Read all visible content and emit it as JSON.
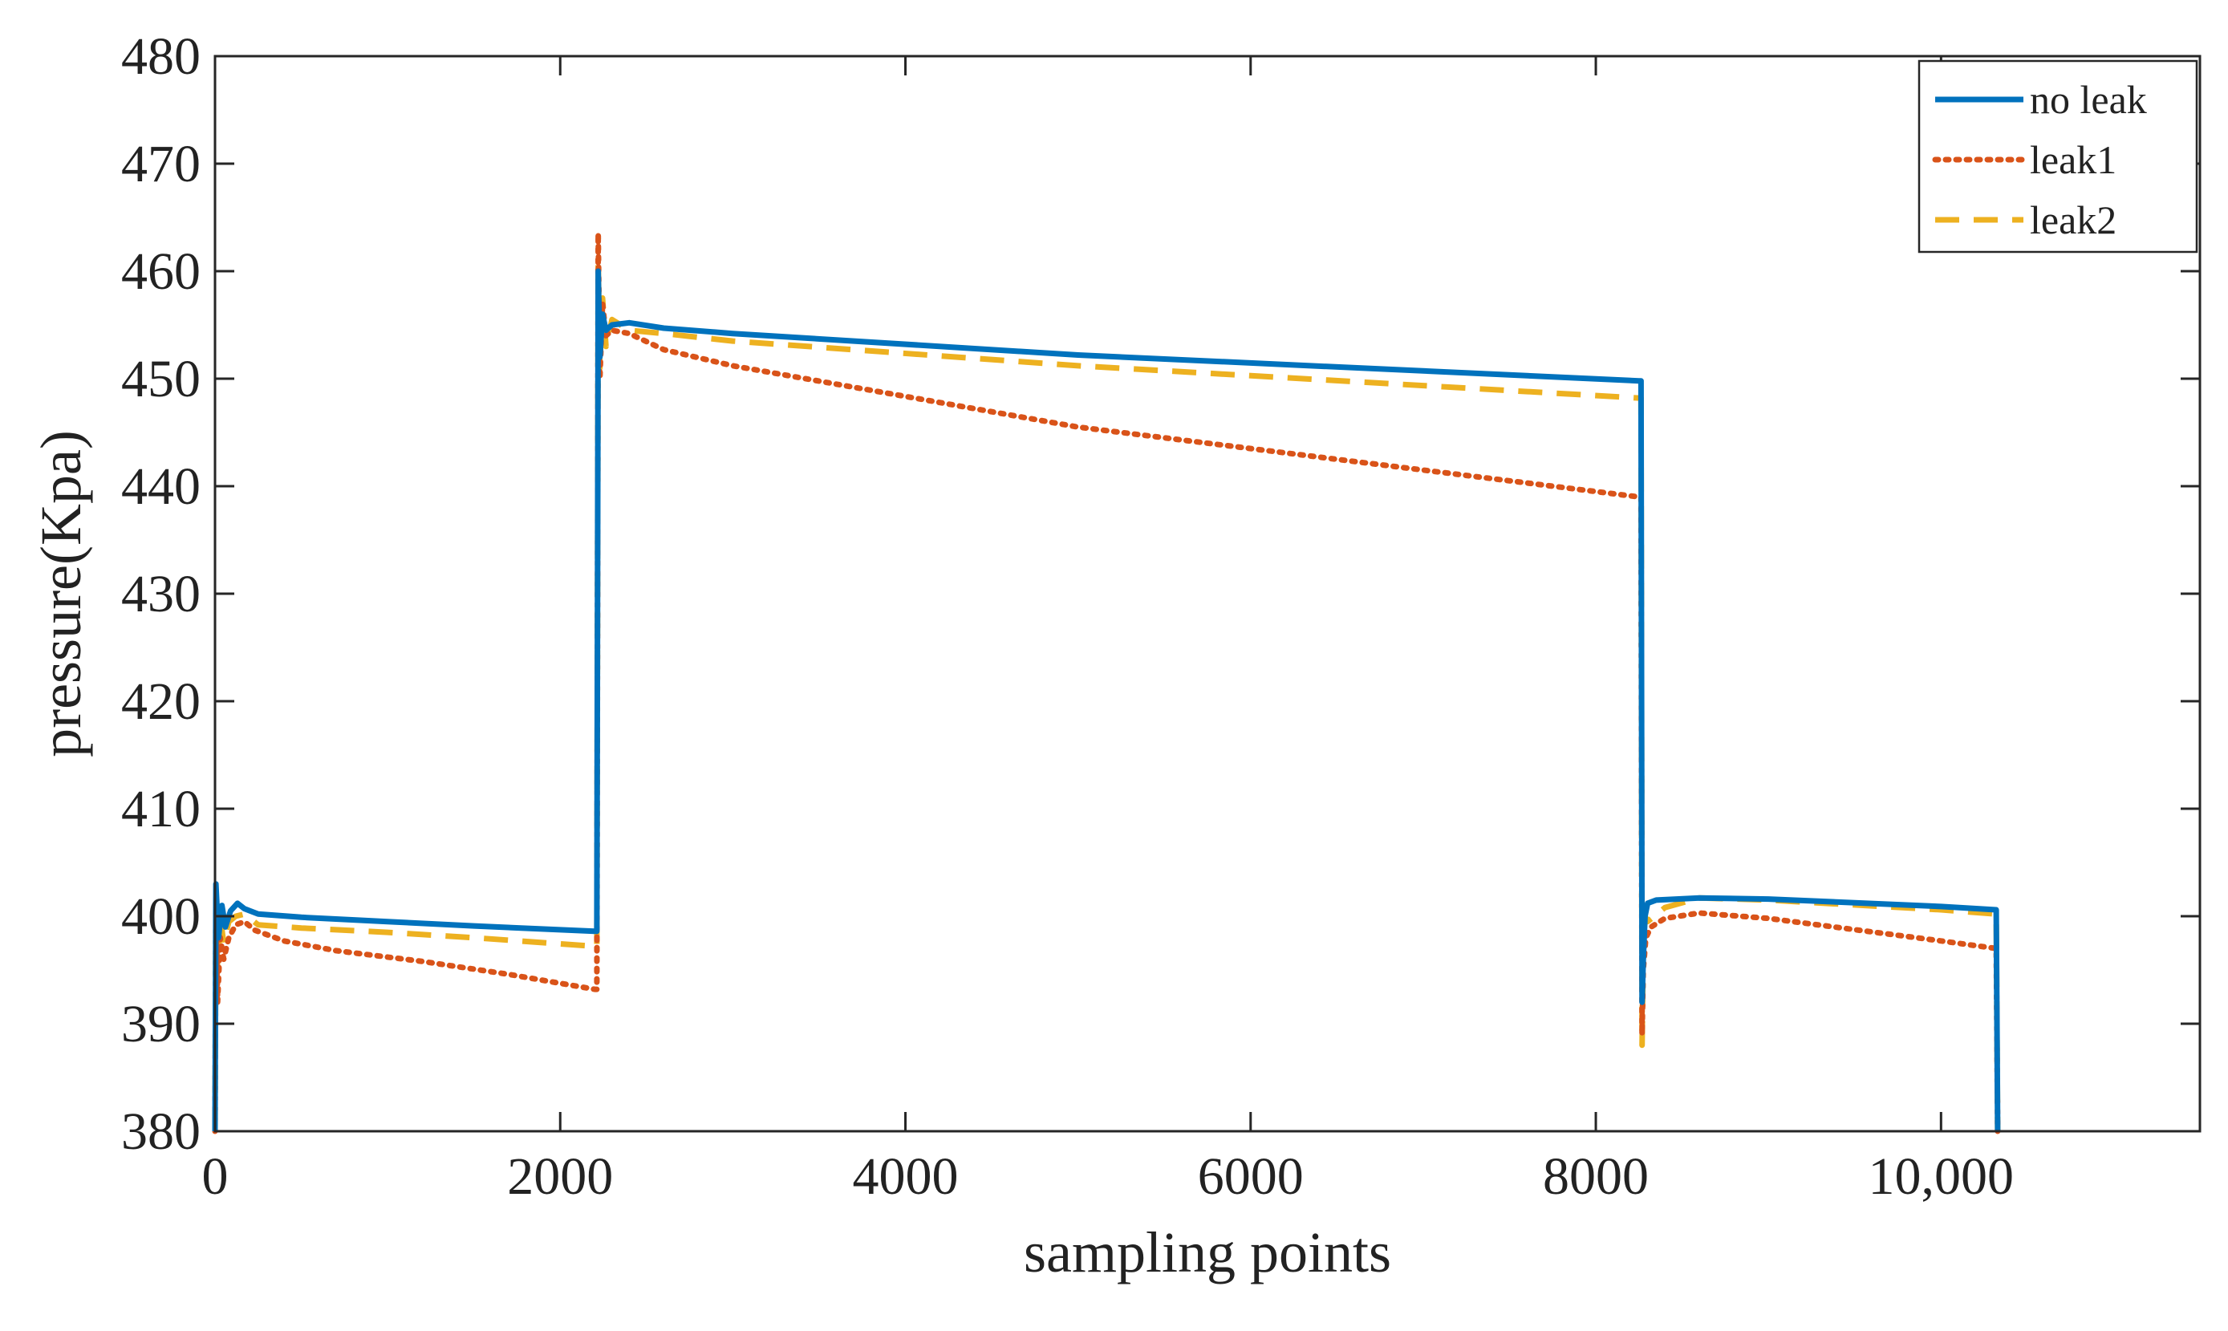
{
  "chart_data": {
    "type": "line",
    "title": "",
    "xlabel": "sampling points",
    "ylabel": "pressure(Kpa)",
    "xlim": [
      0,
      11500
    ],
    "ylim": [
      380,
      480
    ],
    "xticks": [
      0,
      2000,
      4000,
      6000,
      8000,
      10000
    ],
    "xtick_labels": [
      "0",
      "2000",
      "4000",
      "6000",
      "8000",
      "10,000"
    ],
    "yticks": [
      380,
      390,
      400,
      410,
      420,
      430,
      440,
      450,
      460,
      470,
      480
    ],
    "ytick_labels": [
      "380",
      "390",
      "400",
      "410",
      "420",
      "430",
      "440",
      "450",
      "460",
      "470",
      "480"
    ],
    "legend_position": "top-right",
    "series": [
      {
        "name": "no leak",
        "color": "#0072BD",
        "style": "solid",
        "points": [
          [
            0,
            380
          ],
          [
            5,
            403
          ],
          [
            20,
            398
          ],
          [
            40,
            401
          ],
          [
            60,
            399
          ],
          [
            90,
            400.5
          ],
          [
            130,
            401.2
          ],
          [
            170,
            400.7
          ],
          [
            250,
            400.2
          ],
          [
            500,
            399.9
          ],
          [
            1000,
            399.5
          ],
          [
            1500,
            399.1
          ],
          [
            2200,
            398.6
          ],
          [
            2212,
            398.6
          ],
          [
            2220,
            460
          ],
          [
            2230,
            452
          ],
          [
            2245,
            456
          ],
          [
            2265,
            454.5
          ],
          [
            2300,
            455
          ],
          [
            2400,
            455.2
          ],
          [
            2600,
            454.7
          ],
          [
            3000,
            454.2
          ],
          [
            5000,
            452.2
          ],
          [
            8250,
            449.8
          ],
          [
            8262,
            449.8
          ],
          [
            8268,
            392
          ],
          [
            8275,
            396
          ],
          [
            8285,
            400
          ],
          [
            8300,
            401.2
          ],
          [
            8350,
            401.5
          ],
          [
            8600,
            401.7
          ],
          [
            9000,
            401.6
          ],
          [
            10000,
            400.9
          ],
          [
            10320,
            400.6
          ],
          [
            10328,
            380
          ]
        ]
      },
      {
        "name": "leak1",
        "color": "#D95319",
        "style": "dotted",
        "points": [
          [
            0,
            380
          ],
          [
            5,
            402
          ],
          [
            15,
            392
          ],
          [
            30,
            398
          ],
          [
            50,
            396
          ],
          [
            80,
            398
          ],
          [
            120,
            399.2
          ],
          [
            170,
            399.5
          ],
          [
            230,
            398.7
          ],
          [
            400,
            397.7
          ],
          [
            700,
            396.8
          ],
          [
            1200,
            395.8
          ],
          [
            1700,
            394.6
          ],
          [
            2200,
            393.2
          ],
          [
            2212,
            393.2
          ],
          [
            2220,
            463.5
          ],
          [
            2230,
            450
          ],
          [
            2245,
            457
          ],
          [
            2265,
            454
          ],
          [
            2300,
            454.5
          ],
          [
            2400,
            454.2
          ],
          [
            2600,
            452.7
          ],
          [
            3000,
            451.2
          ],
          [
            5000,
            445.5
          ],
          [
            8250,
            439
          ],
          [
            8262,
            439
          ],
          [
            8268,
            389
          ],
          [
            8275,
            395
          ],
          [
            8290,
            398
          ],
          [
            8320,
            399
          ],
          [
            8400,
            399.8
          ],
          [
            8600,
            400.3
          ],
          [
            9000,
            399.8
          ],
          [
            10000,
            397.7
          ],
          [
            10320,
            397
          ],
          [
            10328,
            380
          ]
        ]
      },
      {
        "name": "leak2",
        "color": "#EDB120",
        "style": "dashed",
        "points": [
          [
            0,
            380
          ],
          [
            5,
            401
          ],
          [
            15,
            395
          ],
          [
            30,
            400
          ],
          [
            50,
            397.5
          ],
          [
            80,
            399.5
          ],
          [
            120,
            400
          ],
          [
            170,
            400.2
          ],
          [
            250,
            399.2
          ],
          [
            500,
            398.9
          ],
          [
            1000,
            398.5
          ],
          [
            1500,
            398
          ],
          [
            2200,
            397.2
          ],
          [
            2212,
            397.2
          ],
          [
            2220,
            461
          ],
          [
            2230,
            451
          ],
          [
            2245,
            457.5
          ],
          [
            2265,
            453
          ],
          [
            2300,
            455.5
          ],
          [
            2400,
            454.5
          ],
          [
            2600,
            454.2
          ],
          [
            3000,
            453.5
          ],
          [
            5000,
            451.2
          ],
          [
            8250,
            448.2
          ],
          [
            8262,
            448.2
          ],
          [
            8268,
            388
          ],
          [
            8275,
            397
          ],
          [
            8285,
            400
          ],
          [
            8300,
            399.5
          ],
          [
            8400,
            400.8
          ],
          [
            8600,
            401.7
          ],
          [
            9000,
            401.5
          ],
          [
            10000,
            400.6
          ],
          [
            10320,
            400.2
          ],
          [
            10328,
            380
          ]
        ]
      }
    ]
  }
}
